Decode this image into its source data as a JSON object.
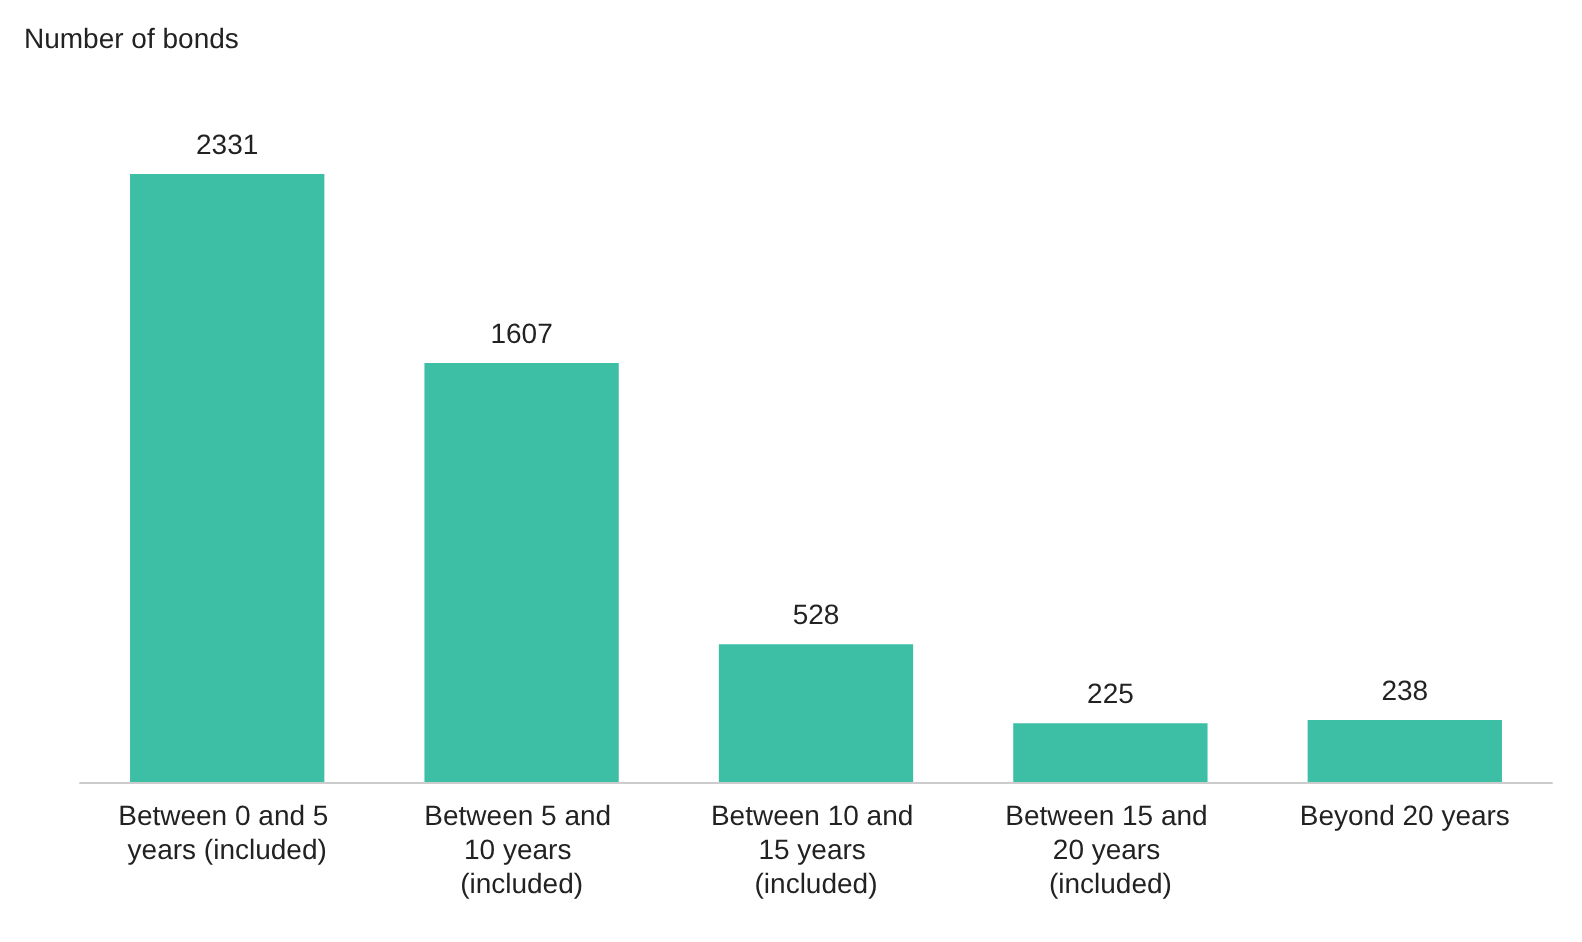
{
  "chart_data": {
    "type": "bar",
    "ylabel": "Number of bonds",
    "categories": [
      "Between 0 and 5 years (included)",
      "Between 5 and 10 years (included)",
      "Between 10 and 15 years (included)",
      "Between 15 and 20 years (included)",
      "Beyond 20 years"
    ],
    "values": [
      2331,
      1607,
      528,
      225,
      238
    ],
    "color": "#3dbfa5",
    "data_labels": true,
    "tick_labels": "x"
  }
}
